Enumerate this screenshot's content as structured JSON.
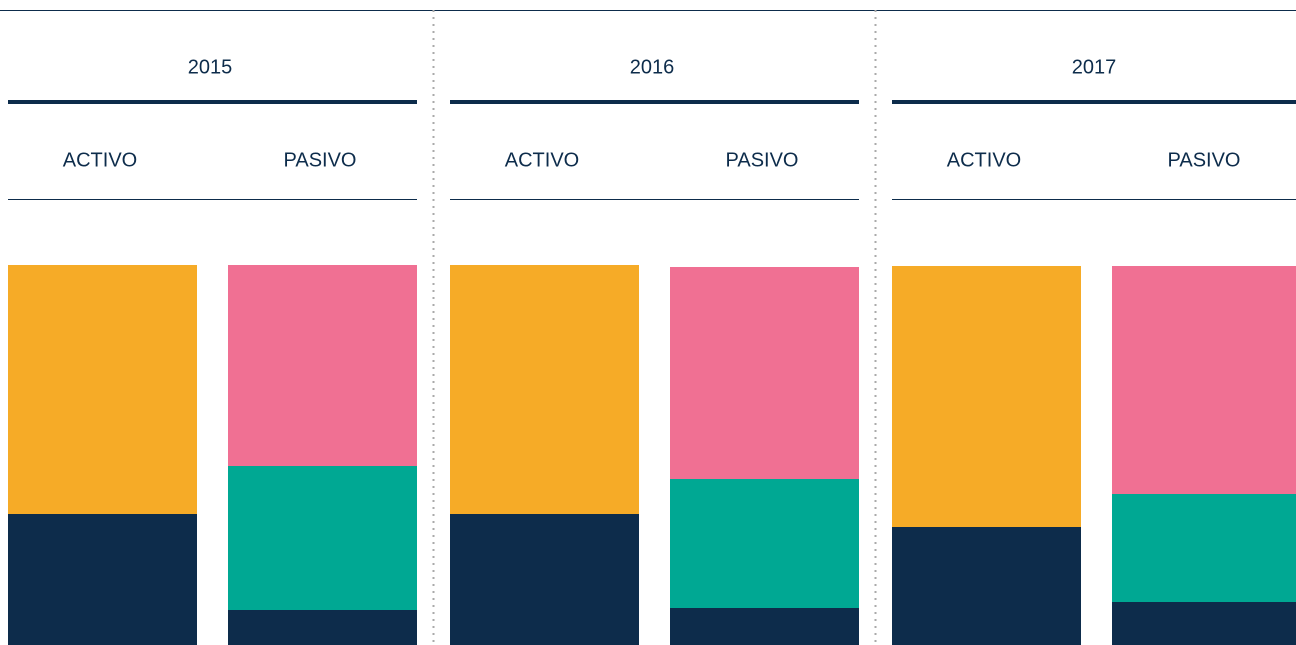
{
  "chart_data": {
    "type": "stacked_bar",
    "ylim": [
      0,
      380
    ],
    "groups": [
      {
        "label": "2015",
        "bars": [
          {
            "label": "ACTIVO",
            "segments": [
              {
                "color": "#0d2c4b",
                "value": 131
              },
              {
                "color": "#f6ab27",
                "value": 249
              }
            ]
          },
          {
            "label": "PASIVO",
            "segments": [
              {
                "color": "#0d2c4b",
                "value": 35
              },
              {
                "color": "#00a893",
                "value": 144
              },
              {
                "color": "#f07093",
                "value": 201
              }
            ]
          }
        ]
      },
      {
        "label": "2016",
        "bars": [
          {
            "label": "ACTIVO",
            "segments": [
              {
                "color": "#0d2c4b",
                "value": 131
              },
              {
                "color": "#f6ab27",
                "value": 249
              }
            ]
          },
          {
            "label": "PASIVO",
            "segments": [
              {
                "color": "#0d2c4b",
                "value": 37
              },
              {
                "color": "#00a893",
                "value": 129
              },
              {
                "color": "#f07093",
                "value": 212
              }
            ]
          }
        ]
      },
      {
        "label": "2017",
        "bars": [
          {
            "label": "ACTIVO",
            "segments": [
              {
                "color": "#0d2c4b",
                "value": 118
              },
              {
                "color": "#f6ab27",
                "value": 261
              }
            ]
          },
          {
            "label": "PASIVO",
            "segments": [
              {
                "color": "#0d2c4b",
                "value": 43
              },
              {
                "color": "#00a893",
                "value": 108
              },
              {
                "color": "#f07093",
                "value": 228
              }
            ]
          }
        ]
      }
    ]
  }
}
